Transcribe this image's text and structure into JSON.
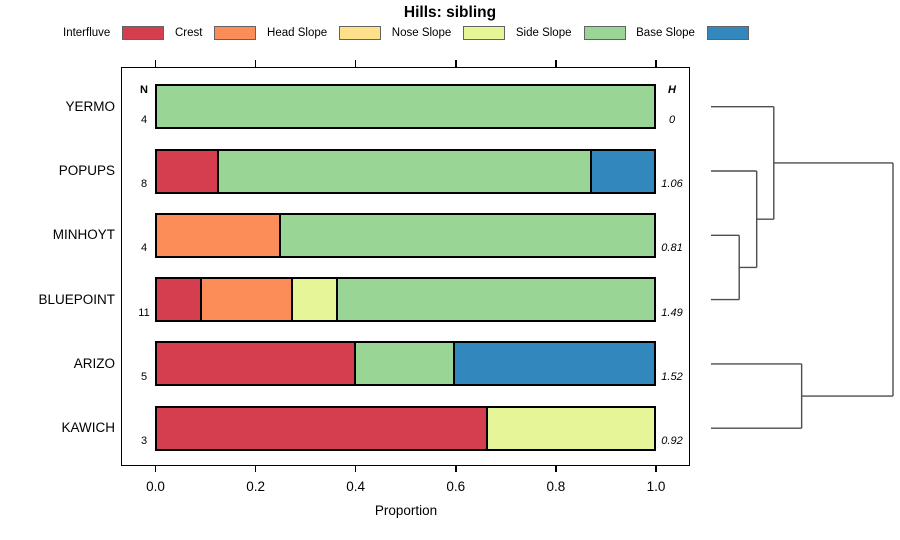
{
  "title": "Hills: sibling",
  "legend": {
    "items": [
      {
        "label": "Interfluve",
        "color": "#D53E4F"
      },
      {
        "label": "Crest",
        "color": "#FC8D59"
      },
      {
        "label": "Head Slope",
        "color": "#FEE08B"
      },
      {
        "label": "Nose Slope",
        "color": "#E6F598"
      },
      {
        "label": "Side Slope",
        "color": "#99D594"
      },
      {
        "label": "Base Slope",
        "color": "#3288BD"
      }
    ]
  },
  "chart_data": {
    "type": "bar",
    "subtype": "stacked-horizontal",
    "title": "Hills: sibling",
    "xlabel": "Proportion",
    "xlim": [
      0,
      1
    ],
    "x_ticks": [
      "0.0",
      "0.2",
      "0.4",
      "0.6",
      "0.8",
      "1.0"
    ],
    "grid": false,
    "legend_position": "top",
    "columns": {
      "n_header": "N",
      "h_header": "H"
    },
    "classes": [
      {
        "name": "Interfluve",
        "color": "#D53E4F"
      },
      {
        "name": "Crest",
        "color": "#FC8D59"
      },
      {
        "name": "Head Slope",
        "color": "#FEE08B"
      },
      {
        "name": "Nose Slope",
        "color": "#E6F598"
      },
      {
        "name": "Side Slope",
        "color": "#99D594"
      },
      {
        "name": "Base Slope",
        "color": "#3288BD"
      }
    ],
    "categories": [
      "YERMO",
      "POPUPS",
      "MINHOYT",
      "BLUEPOINT",
      "ARIZO",
      "KAWICH"
    ],
    "rows": [
      {
        "label": "YERMO",
        "n": "4",
        "h": "0",
        "segments": [
          {
            "class": "Side Slope",
            "value": 1.0
          }
        ]
      },
      {
        "label": "POPUPS",
        "n": "8",
        "h": "1.06",
        "segments": [
          {
            "class": "Interfluve",
            "value": 0.125
          },
          {
            "class": "Side Slope",
            "value": 0.75
          },
          {
            "class": "Base Slope",
            "value": 0.125
          }
        ]
      },
      {
        "label": "MINHOYT",
        "n": "4",
        "h": "0.81",
        "segments": [
          {
            "class": "Crest",
            "value": 0.25
          },
          {
            "class": "Side Slope",
            "value": 0.75
          }
        ]
      },
      {
        "label": "BLUEPOINT",
        "n": "11",
        "h": "1.49",
        "segments": [
          {
            "class": "Interfluve",
            "value": 0.0909
          },
          {
            "class": "Crest",
            "value": 0.1818
          },
          {
            "class": "Nose Slope",
            "value": 0.0909
          },
          {
            "class": "Side Slope",
            "value": 0.6364
          }
        ]
      },
      {
        "label": "ARIZO",
        "n": "5",
        "h": "1.52",
        "segments": [
          {
            "class": "Interfluve",
            "value": 0.4
          },
          {
            "class": "Side Slope",
            "value": 0.2
          },
          {
            "class": "Base Slope",
            "value": 0.4
          }
        ]
      },
      {
        "label": "KAWICH",
        "n": "3",
        "h": "0.92",
        "segments": [
          {
            "class": "Interfluve",
            "value": 0.6667
          },
          {
            "class": "Nose Slope",
            "value": 0.3333
          }
        ]
      }
    ]
  },
  "dendrogram": {
    "leaf_order": [
      "YERMO",
      "POPUPS",
      "MINHOYT",
      "BLUEPOINT",
      "ARIZO",
      "KAWICH"
    ],
    "merges": [
      {
        "a": "MINHOYT",
        "b": "BLUEPOINT",
        "height": 0.155
      },
      {
        "a": "POPUPS",
        "b": "m0",
        "height": 0.251
      },
      {
        "a": "YERMO",
        "b": "m1",
        "height": 0.345
      },
      {
        "a": "ARIZO",
        "b": "KAWICH",
        "height": 0.498
      },
      {
        "a": "m2",
        "b": "m3",
        "height": 1.0
      }
    ],
    "line_color": "#4d4d4d"
  }
}
